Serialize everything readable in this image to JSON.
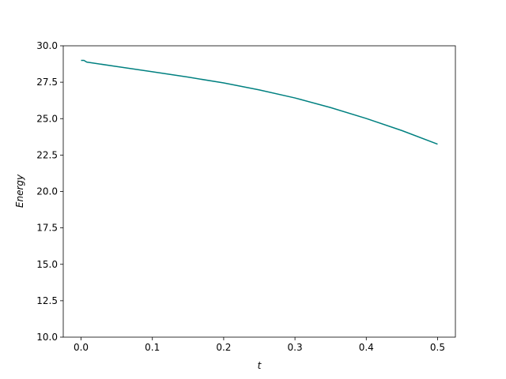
{
  "chart_data": {
    "type": "line",
    "x_label": "t",
    "y_label": "Energy",
    "x": [
      0,
      0.004,
      0.008,
      0.05,
      0.1,
      0.15,
      0.2,
      0.25,
      0.3,
      0.35,
      0.4,
      0.45,
      0.5
    ],
    "series": [
      {
        "color": "#008080",
        "values": [
          29.0,
          29.0,
          28.88,
          28.58,
          28.22,
          27.85,
          27.45,
          26.97,
          26.42,
          25.76,
          25.01,
          24.18,
          23.25
        ]
      }
    ],
    "xlim": [
      -0.025,
      0.525
    ],
    "xticks": [
      {
        "value": 0,
        "label": "0.0"
      },
      0.1,
      0.2,
      0.3,
      0.4,
      0.5
    ],
    "ylim": [
      10,
      30
    ],
    "yticks": [
      {
        "value": 10,
        "label": "10.0"
      },
      12.5,
      {
        "value": 15,
        "label": "15.0"
      },
      17.5,
      {
        "value": 20,
        "label": "20.0"
      },
      22.5,
      {
        "value": 25,
        "label": "25.0"
      },
      27.5,
      {
        "value": 30,
        "label": "30.0"
      }
    ],
    "grid": false
  }
}
